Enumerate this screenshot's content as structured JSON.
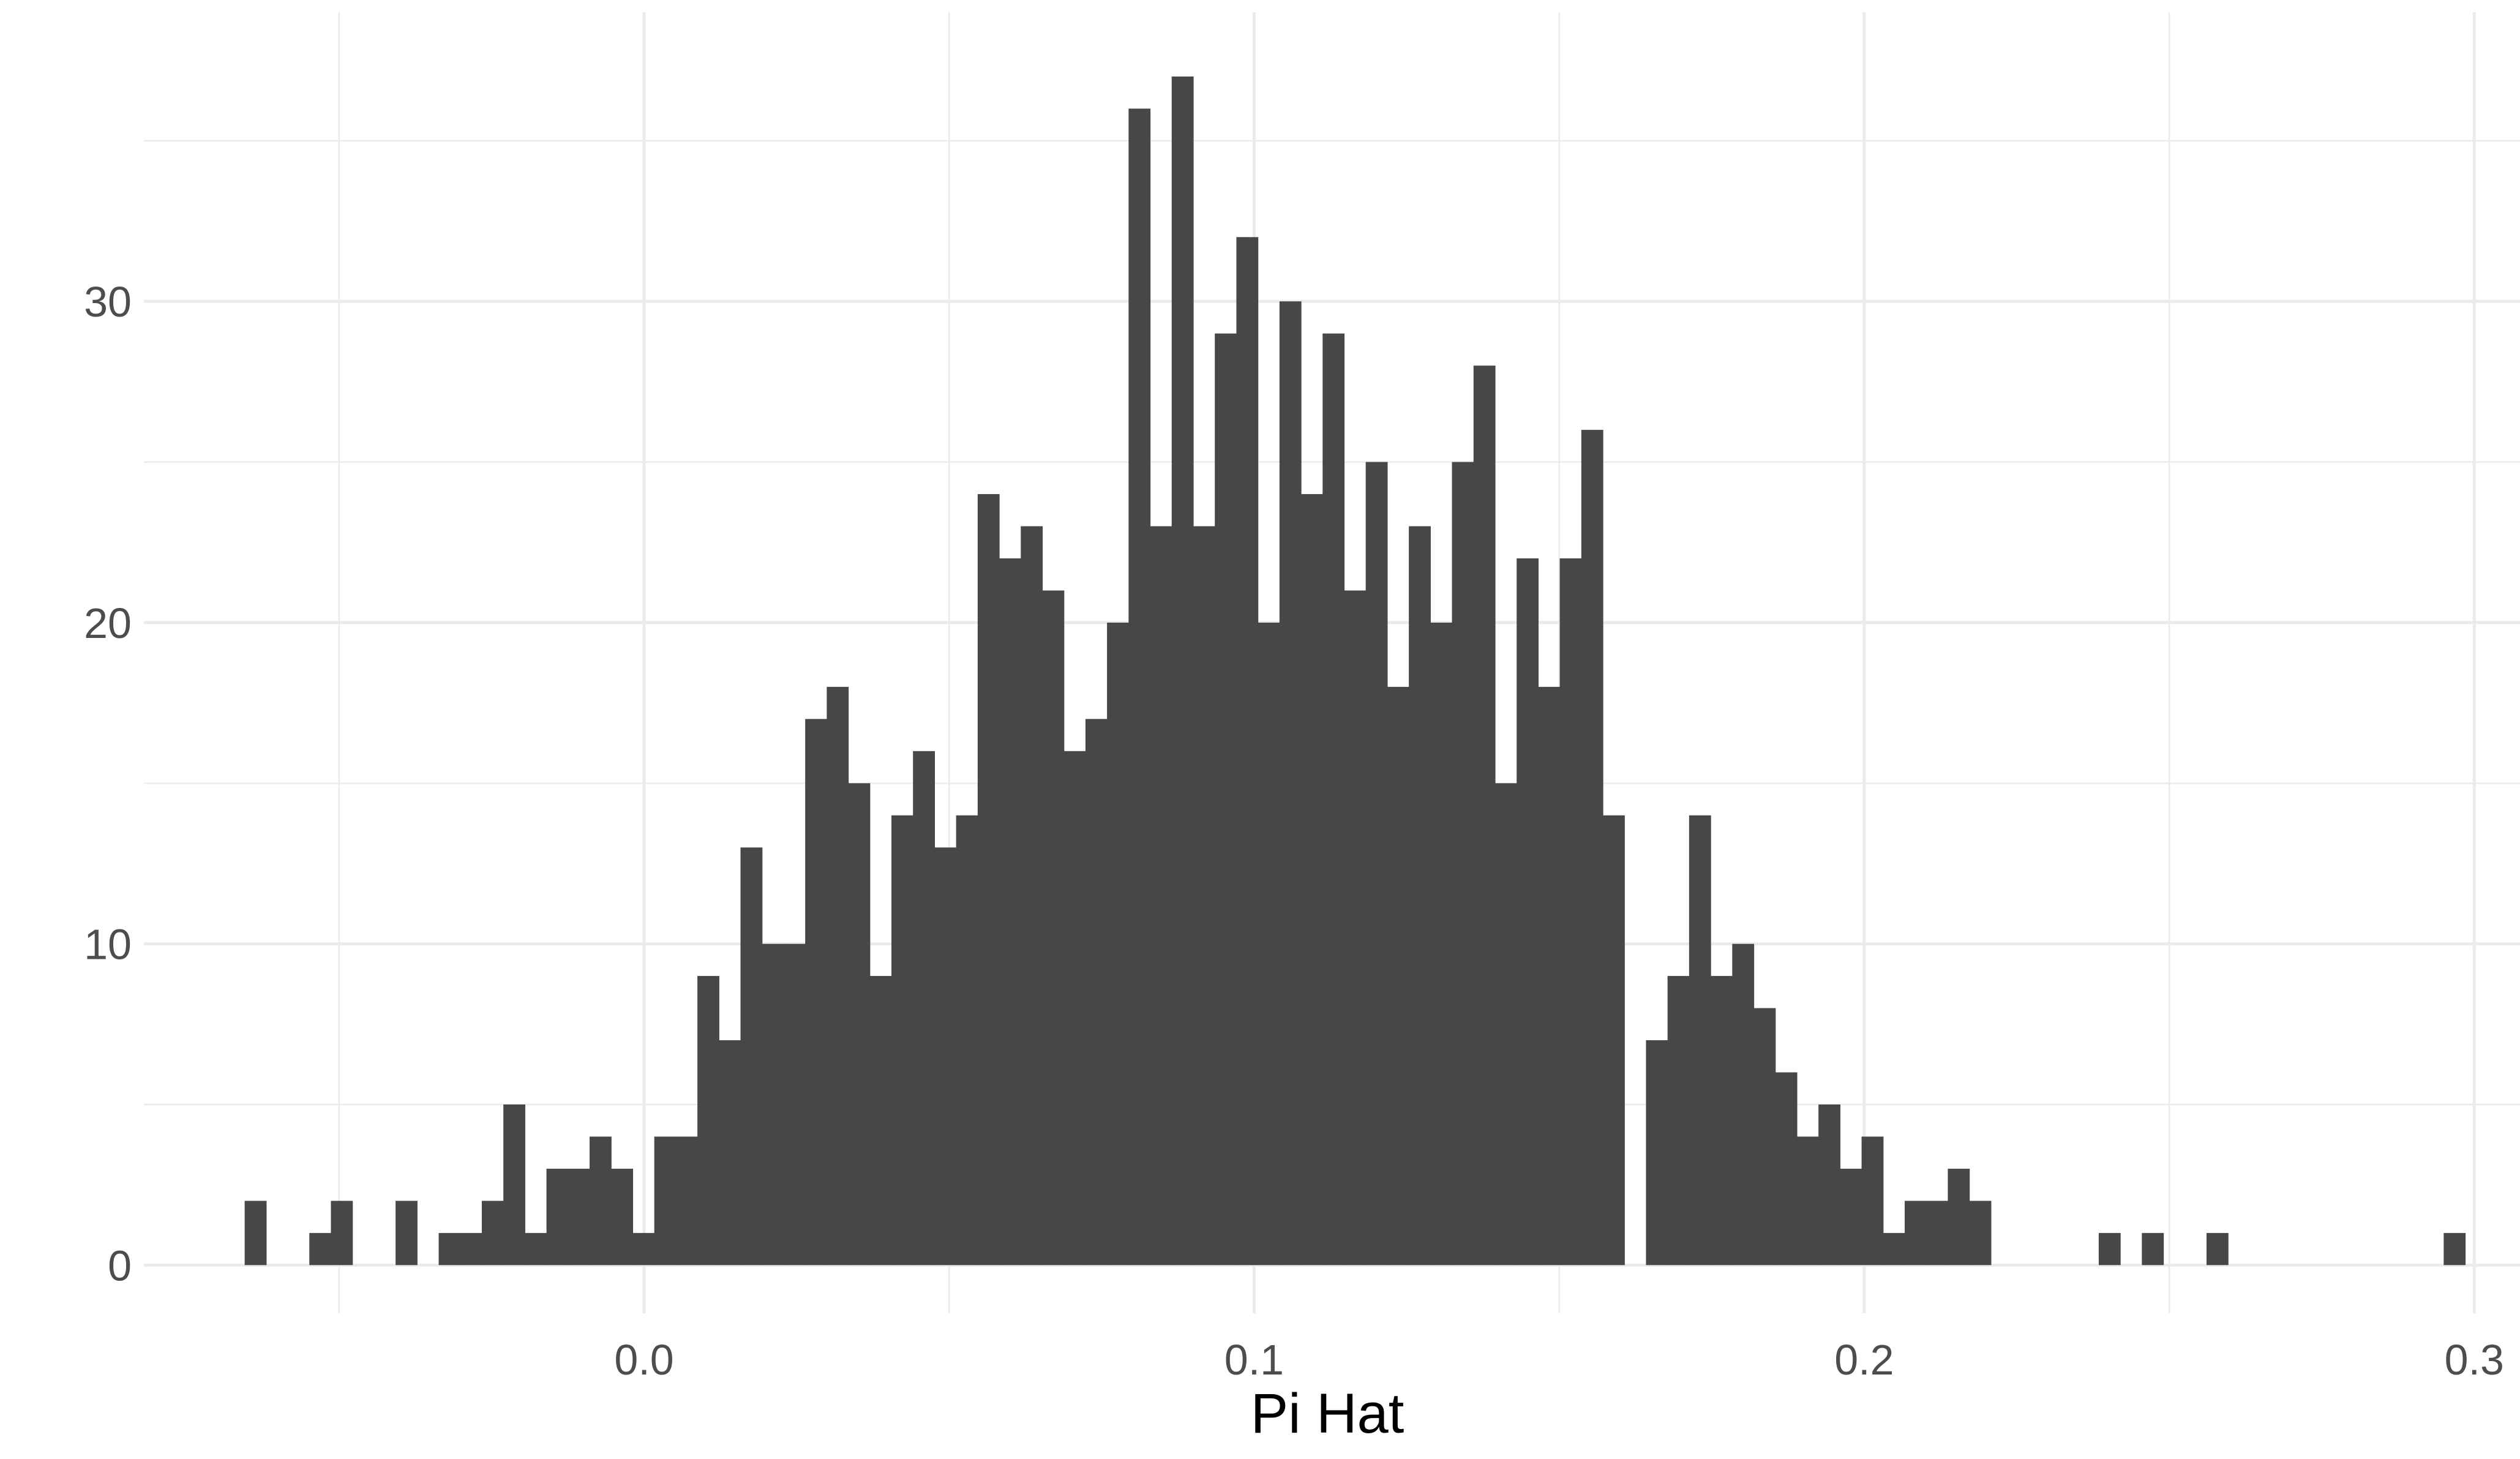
{
  "chart_data": {
    "type": "bar",
    "subtype": "histogram",
    "title": "",
    "xlabel": "Pi Hat",
    "ylabel": "",
    "xlim": [
      -0.082,
      0.3075
    ],
    "ylim": [
      -1.5,
      39
    ],
    "grid": true,
    "bar_color": "#474747",
    "gridline_color": "#ebebeb",
    "tick_label_color": "#4d4d4d",
    "x_ticks": [
      {
        "value": 0.0,
        "label": "0.0"
      },
      {
        "value": 0.1,
        "label": "0.1"
      },
      {
        "value": 0.2,
        "label": "0.2"
      },
      {
        "value": 0.3,
        "label": "0.3"
      }
    ],
    "y_ticks": [
      {
        "value": 0,
        "label": "0"
      },
      {
        "value": 10,
        "label": "10"
      },
      {
        "value": 20,
        "label": "20"
      },
      {
        "value": 30,
        "label": "30"
      }
    ],
    "x_minor_ticks": [
      -0.05,
      0.05,
      0.15,
      0.25
    ],
    "y_minor_ticks": [
      5,
      15,
      25,
      35
    ],
    "bin_width": 0.003534,
    "x_start": -0.06548,
    "counts": [
      2,
      0,
      0,
      1,
      2,
      0,
      0,
      2,
      0,
      1,
      1,
      2,
      5,
      1,
      3,
      3,
      4,
      3,
      1,
      4,
      4,
      9,
      7,
      13,
      10,
      10,
      17,
      18,
      15,
      9,
      14,
      16,
      13,
      14,
      24,
      22,
      23,
      21,
      16,
      17,
      20,
      36,
      23,
      37,
      23,
      29,
      32,
      20,
      30,
      24,
      29,
      21,
      25,
      18,
      23,
      20,
      25,
      28,
      15,
      22,
      18,
      22,
      26,
      14,
      0,
      7,
      9,
      14,
      9,
      10,
      8,
      6,
      4,
      5,
      3,
      4,
      1,
      2,
      2,
      3,
      2,
      0,
      0,
      0,
      0,
      0,
      1,
      0,
      1,
      0,
      0,
      1,
      0,
      0,
      0,
      0,
      0,
      0,
      0,
      0,
      0,
      0,
      1
    ]
  }
}
